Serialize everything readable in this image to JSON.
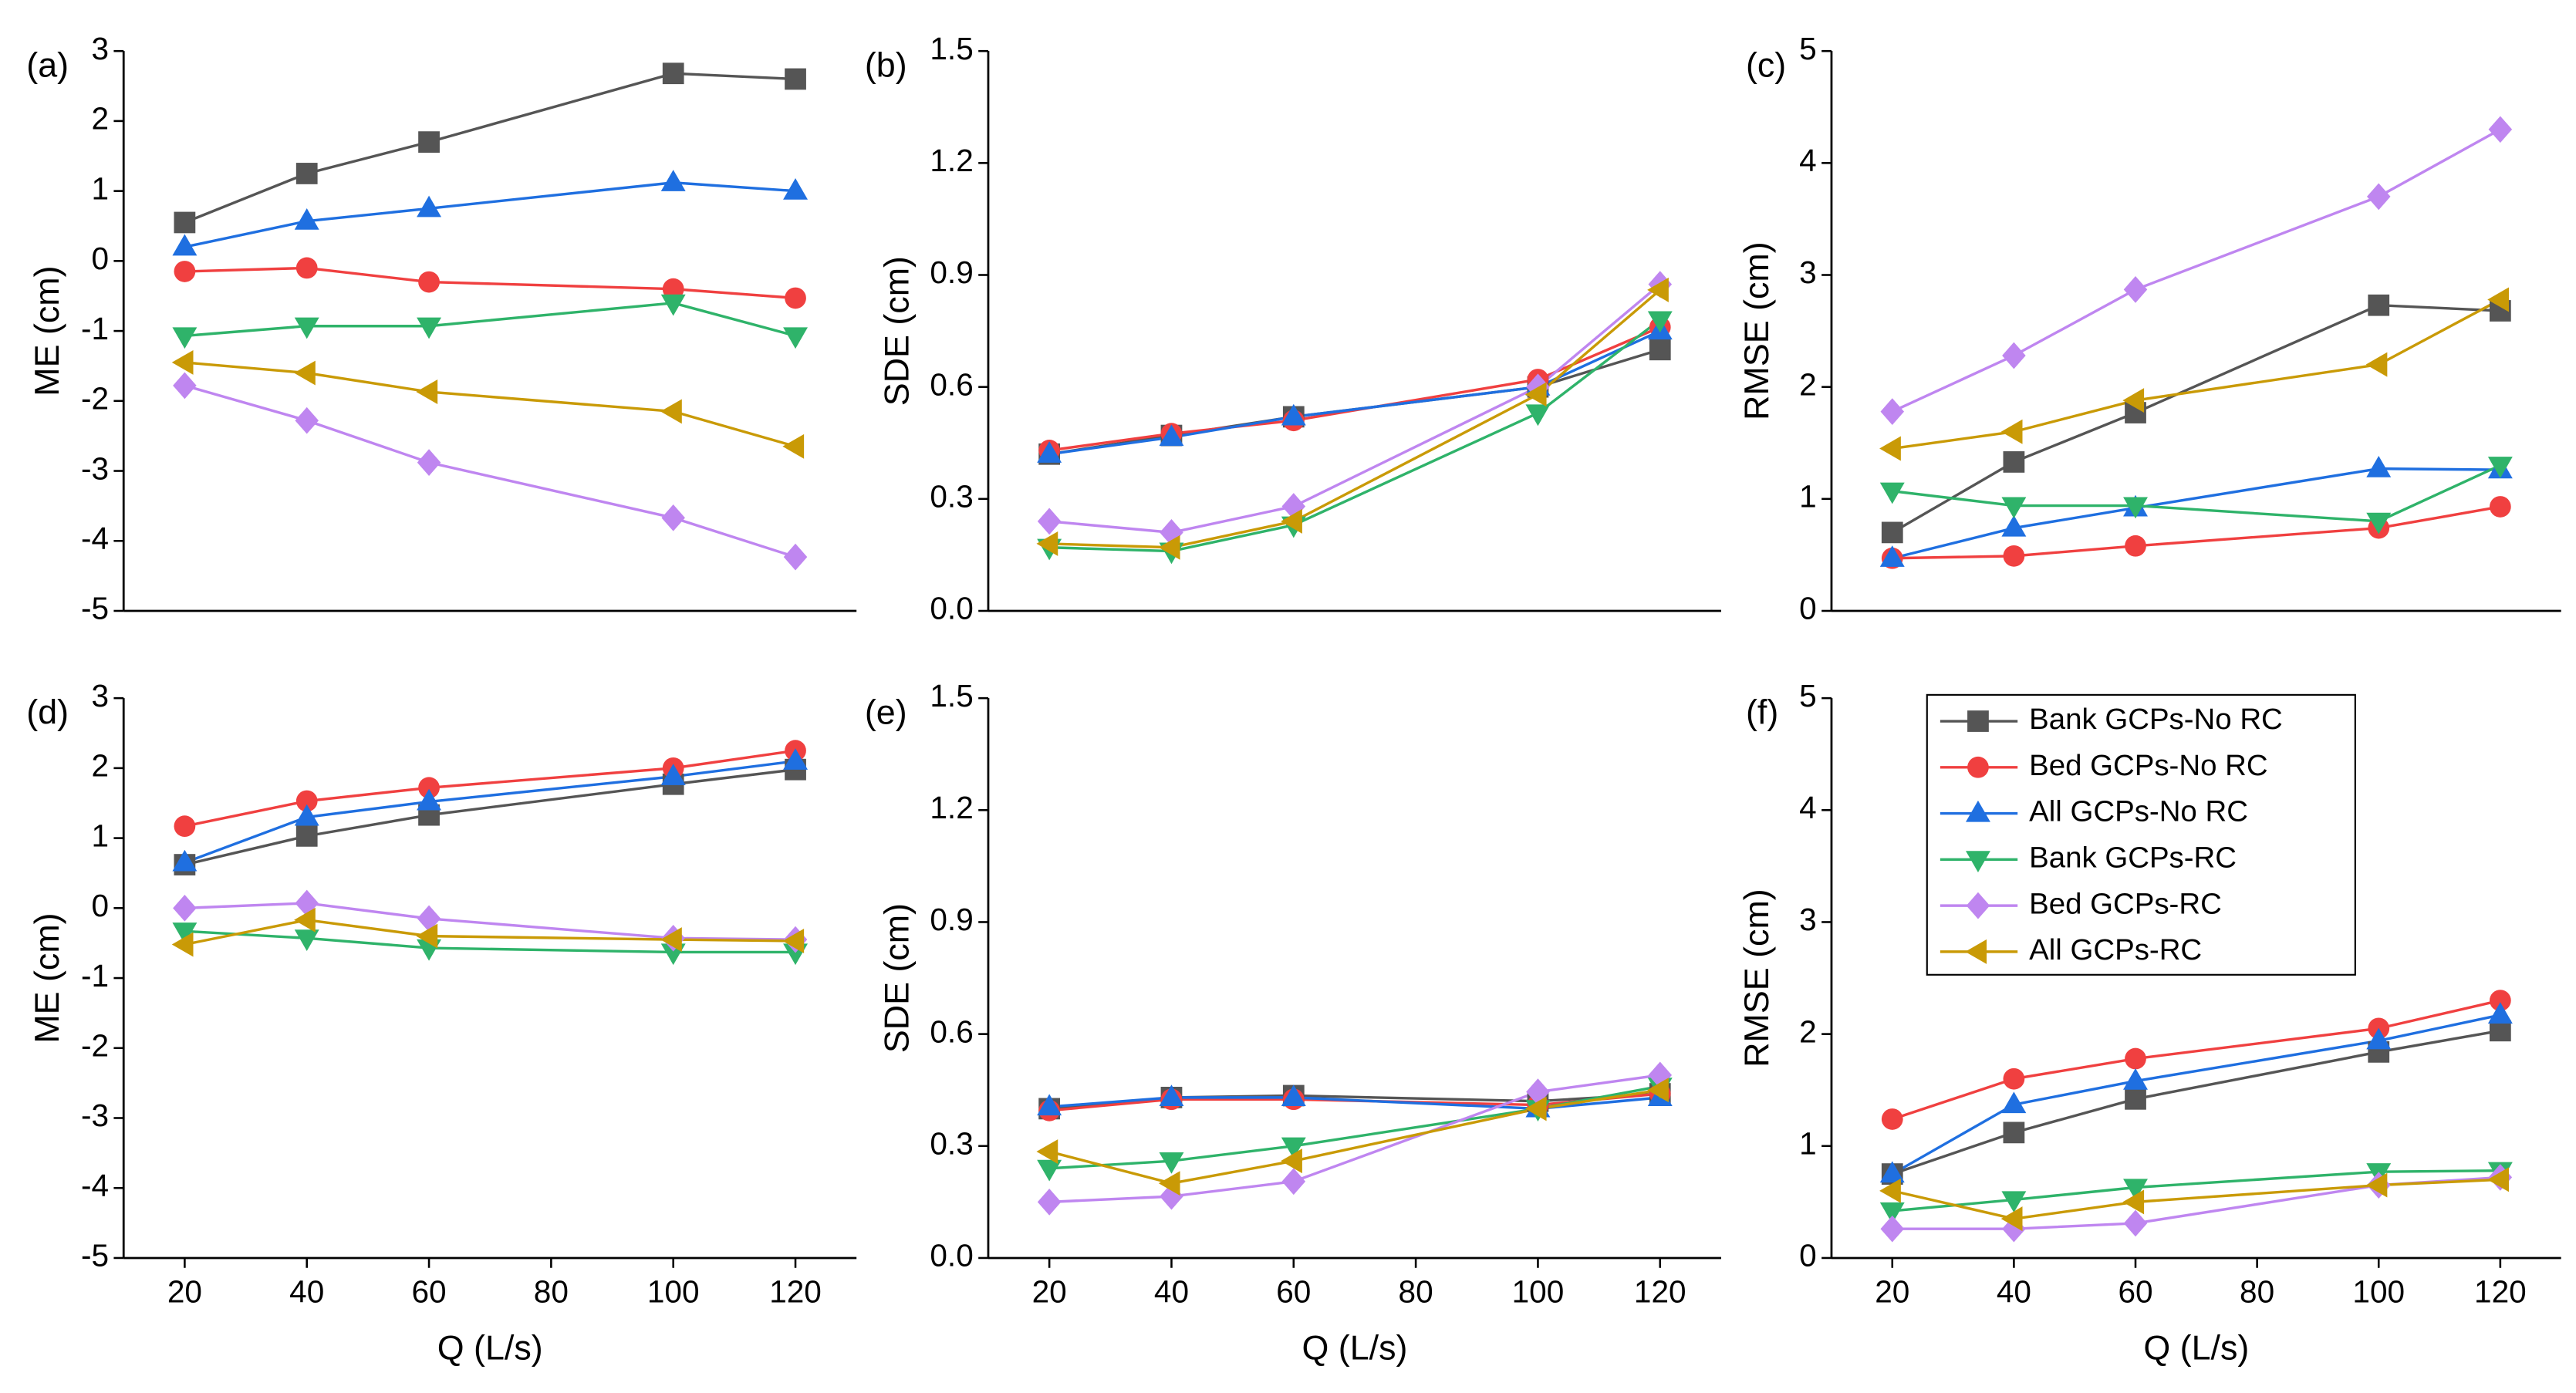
{
  "chart_data": [
    {
      "type": "line",
      "panel_label": "(a)",
      "ylabel": "ME (cm)",
      "x": [
        20,
        40,
        60,
        100,
        120
      ],
      "xlim": [
        10,
        130
      ],
      "ylim": [
        -5,
        3
      ],
      "yticks": [
        -5,
        -4,
        -3,
        -2,
        -1,
        0,
        1,
        2,
        3
      ],
      "series": [
        {
          "color": "#555555",
          "marker": "square",
          "values": [
            0.55,
            1.25,
            1.7,
            2.68,
            2.6
          ]
        },
        {
          "color": "#f04040",
          "marker": "circle",
          "values": [
            -0.15,
            -0.1,
            -0.3,
            -0.4,
            -0.53
          ]
        },
        {
          "color": "#1f6fe0",
          "marker": "triangle-up",
          "values": [
            0.2,
            0.57,
            0.75,
            1.12,
            1.0
          ]
        },
        {
          "color": "#2fb36a",
          "marker": "triangle-down",
          "values": [
            -1.07,
            -0.93,
            -0.93,
            -0.6,
            -1.07
          ]
        },
        {
          "color": "#bf86f0",
          "marker": "diamond",
          "values": [
            -1.78,
            -2.28,
            -2.88,
            -3.67,
            -4.23
          ]
        },
        {
          "color": "#c99a06",
          "marker": "triangle-left",
          "values": [
            -1.45,
            -1.6,
            -1.87,
            -2.15,
            -2.65
          ]
        }
      ]
    },
    {
      "type": "line",
      "panel_label": "(b)",
      "ylabel": "SDE (cm)",
      "x": [
        20,
        40,
        60,
        100,
        120
      ],
      "xlim": [
        10,
        130
      ],
      "ylim": [
        0,
        1.5
      ],
      "yticks": [
        {
          "value": 0,
          "label": "0.0"
        },
        0.3,
        0.6,
        0.9,
        1.2,
        1.5
      ],
      "series": [
        {
          "color": "#555555",
          "marker": "square",
          "values": [
            0.42,
            0.47,
            0.52,
            0.6,
            0.7
          ]
        },
        {
          "color": "#f04040",
          "marker": "circle",
          "values": [
            0.43,
            0.475,
            0.51,
            0.62,
            0.76
          ]
        },
        {
          "color": "#1f6fe0",
          "marker": "triangle-up",
          "values": [
            0.42,
            0.465,
            0.52,
            0.6,
            0.75
          ]
        },
        {
          "color": "#2fb36a",
          "marker": "triangle-down",
          "values": [
            0.17,
            0.16,
            0.23,
            0.53,
            0.78
          ]
        },
        {
          "color": "#bf86f0",
          "marker": "diamond",
          "values": [
            0.24,
            0.21,
            0.28,
            0.6,
            0.875
          ]
        },
        {
          "color": "#c99a06",
          "marker": "triangle-left",
          "values": [
            0.18,
            0.17,
            0.24,
            0.58,
            0.86
          ]
        }
      ]
    },
    {
      "type": "line",
      "panel_label": "(c)",
      "ylabel": "RMSE (cm)",
      "x": [
        20,
        40,
        60,
        100,
        120
      ],
      "xlim": [
        10,
        130
      ],
      "ylim": [
        0,
        5
      ],
      "yticks": [
        0,
        1,
        2,
        3,
        4,
        5
      ],
      "series": [
        {
          "color": "#555555",
          "marker": "square",
          "values": [
            0.7,
            1.33,
            1.77,
            2.73,
            2.68
          ]
        },
        {
          "color": "#f04040",
          "marker": "circle",
          "values": [
            0.47,
            0.49,
            0.58,
            0.74,
            0.93
          ]
        },
        {
          "color": "#1f6fe0",
          "marker": "triangle-up",
          "values": [
            0.47,
            0.74,
            0.92,
            1.27,
            1.26
          ]
        },
        {
          "color": "#2fb36a",
          "marker": "triangle-down",
          "values": [
            1.07,
            0.94,
            0.94,
            0.8,
            1.3
          ]
        },
        {
          "color": "#bf86f0",
          "marker": "diamond",
          "values": [
            1.78,
            2.28,
            2.87,
            3.7,
            4.3
          ]
        },
        {
          "color": "#c99a06",
          "marker": "triangle-left",
          "values": [
            1.45,
            1.6,
            1.88,
            2.2,
            2.78
          ]
        }
      ]
    },
    {
      "type": "line",
      "panel_label": "(d)",
      "ylabel": "ME (cm)",
      "xlabel": "Q (L/s)",
      "x": [
        20,
        40,
        60,
        100,
        120
      ],
      "xlim": [
        10,
        130
      ],
      "xticks": [
        20,
        40,
        60,
        80,
        100,
        120
      ],
      "ylim": [
        -5,
        3
      ],
      "yticks": [
        -5,
        -4,
        -3,
        -2,
        -1,
        0,
        1,
        2,
        3
      ],
      "series": [
        {
          "color": "#555555",
          "marker": "square",
          "values": [
            0.62,
            1.03,
            1.33,
            1.77,
            1.98
          ]
        },
        {
          "color": "#f04040",
          "marker": "circle",
          "values": [
            1.17,
            1.53,
            1.72,
            2.0,
            2.25
          ]
        },
        {
          "color": "#1f6fe0",
          "marker": "triangle-up",
          "values": [
            0.65,
            1.3,
            1.52,
            1.88,
            2.1
          ]
        },
        {
          "color": "#2fb36a",
          "marker": "triangle-down",
          "values": [
            -0.33,
            -0.43,
            -0.57,
            -0.63,
            -0.63
          ]
        },
        {
          "color": "#bf86f0",
          "marker": "diamond",
          "values": [
            0.0,
            0.07,
            -0.15,
            -0.43,
            -0.45
          ]
        },
        {
          "color": "#c99a06",
          "marker": "triangle-left",
          "values": [
            -0.52,
            -0.17,
            -0.4,
            -0.45,
            -0.47
          ]
        }
      ]
    },
    {
      "type": "line",
      "panel_label": "(e)",
      "ylabel": "SDE (cm)",
      "xlabel": "Q (L/s)",
      "x": [
        20,
        40,
        60,
        100,
        120
      ],
      "xlim": [
        10,
        130
      ],
      "xticks": [
        20,
        40,
        60,
        80,
        100,
        120
      ],
      "ylim": [
        0,
        1.5
      ],
      "yticks": [
        {
          "value": 0,
          "label": "0.0"
        },
        0.3,
        0.6,
        0.9,
        1.2,
        1.5
      ],
      "series": [
        {
          "color": "#555555",
          "marker": "square",
          "values": [
            0.4,
            0.43,
            0.435,
            0.42,
            0.44
          ]
        },
        {
          "color": "#f04040",
          "marker": "circle",
          "values": [
            0.395,
            0.425,
            0.425,
            0.41,
            0.44
          ]
        },
        {
          "color": "#1f6fe0",
          "marker": "triangle-up",
          "values": [
            0.405,
            0.43,
            0.43,
            0.4,
            0.43
          ]
        },
        {
          "color": "#2fb36a",
          "marker": "triangle-down",
          "values": [
            0.24,
            0.26,
            0.3,
            0.4,
            0.46
          ]
        },
        {
          "color": "#bf86f0",
          "marker": "diamond",
          "values": [
            0.15,
            0.165,
            0.205,
            0.445,
            0.49
          ]
        },
        {
          "color": "#c99a06",
          "marker": "triangle-left",
          "values": [
            0.285,
            0.2,
            0.26,
            0.4,
            0.45
          ]
        }
      ]
    },
    {
      "type": "line",
      "panel_label": "(f)",
      "ylabel": "RMSE (cm)",
      "xlabel": "Q (L/s)",
      "x": [
        20,
        40,
        60,
        100,
        120
      ],
      "xlim": [
        10,
        130
      ],
      "xticks": [
        20,
        40,
        60,
        80,
        100,
        120
      ],
      "ylim": [
        0,
        5
      ],
      "yticks": [
        0,
        1,
        2,
        3,
        4,
        5
      ],
      "legend": "upper right",
      "series": [
        {
          "name": "Bank GCPs-No RC",
          "color": "#555555",
          "marker": "square",
          "values": [
            0.75,
            1.12,
            1.42,
            1.84,
            2.03
          ]
        },
        {
          "name": "Bed GCPs-No RC",
          "color": "#f04040",
          "marker": "circle",
          "values": [
            1.24,
            1.6,
            1.78,
            2.05,
            2.3
          ]
        },
        {
          "name": "All GCPs-No RC",
          "color": "#1f6fe0",
          "marker": "triangle-up",
          "values": [
            0.75,
            1.37,
            1.58,
            1.94,
            2.17
          ]
        },
        {
          "name": "Bank GCPs-RC",
          "color": "#2fb36a",
          "marker": "triangle-down",
          "values": [
            0.42,
            0.52,
            0.63,
            0.77,
            0.78
          ]
        },
        {
          "name": "Bed GCPs-RC",
          "color": "#bf86f0",
          "marker": "diamond",
          "values": [
            0.26,
            0.26,
            0.31,
            0.65,
            0.72
          ]
        },
        {
          "name": "All GCPs-RC",
          "color": "#c99a06",
          "marker": "triangle-left",
          "values": [
            0.6,
            0.35,
            0.5,
            0.65,
            0.7
          ]
        }
      ]
    }
  ]
}
